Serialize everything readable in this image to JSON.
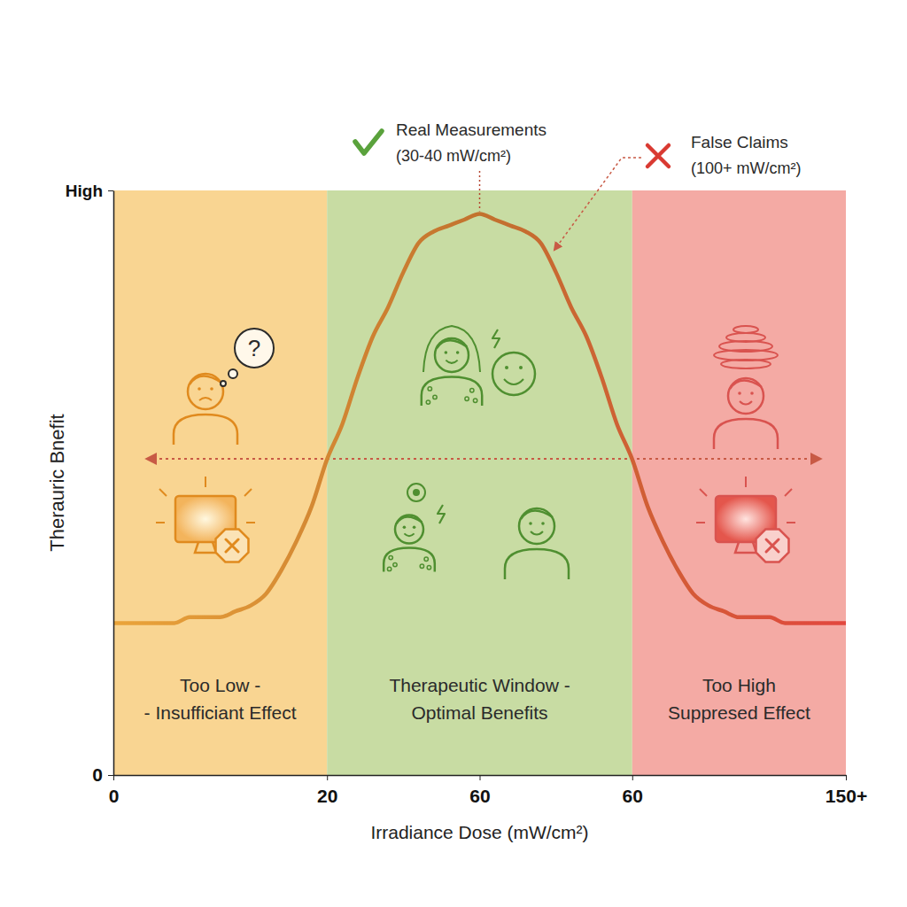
{
  "chart_data": {
    "type": "line",
    "x_label": "Irradiance Dose (mW/cm²)",
    "y_label": "Therauric Bnefit",
    "categories": [
      "0",
      null,
      null,
      null,
      null,
      null,
      null,
      null,
      null,
      null,
      null,
      null,
      null,
      null,
      "20",
      null,
      null,
      null,
      null,
      null,
      null,
      null,
      null,
      null,
      "60",
      null,
      null,
      null,
      null,
      null,
      null,
      null,
      null,
      null,
      "60",
      null,
      null,
      null,
      null,
      null,
      null,
      null,
      null,
      null,
      null,
      null,
      null,
      null,
      "150+"
    ],
    "series": [
      {
        "color": "#c2722e",
        "values": [
          0.26,
          0.26,
          0.26,
          0.26,
          0.26,
          0.27,
          0.27,
          0.27,
          0.28,
          0.29,
          0.31,
          0.35,
          0.4,
          0.46,
          0.54,
          0.6,
          0.68,
          0.75,
          0.8,
          0.86,
          0.91,
          0.93,
          0.94,
          0.95,
          0.96,
          0.95,
          0.94,
          0.93,
          0.91,
          0.86,
          0.8,
          0.75,
          0.68,
          0.6,
          0.54,
          0.46,
          0.4,
          0.35,
          0.31,
          0.29,
          0.28,
          0.27,
          0.27,
          0.27,
          0.26,
          0.26,
          0.26,
          0.26,
          0.26
        ]
      }
    ],
    "ylim": [
      0,
      1
    ],
    "yticks": [
      0,
      {
        "value": 1,
        "label": "High"
      }
    ],
    "zones": [
      {
        "label": [
          "Too Low -",
          "- Insufficiant Effect"
        ],
        "start": 0,
        "end": 14,
        "color": "#f9d592"
      },
      {
        "label": [
          "Therapeutic Window -",
          "Optimal Benefits"
        ],
        "start": 14,
        "end": 34,
        "color": "#c8dca3"
      },
      {
        "label": [
          "Too High",
          "Suppresed Effect"
        ],
        "start": 34,
        "end": 48,
        "color": "#f4aaa4"
      }
    ],
    "annotations": [
      {
        "text": [
          "Real Measurements",
          "(30-40 mW/cm²)"
        ],
        "color": "#5aa23c"
      },
      {
        "text": [
          "False Claims",
          "(100+ mW/cm²)"
        ],
        "color": "#d93a32"
      },
      {
        "text": [
          "?"
        ]
      }
    ]
  }
}
